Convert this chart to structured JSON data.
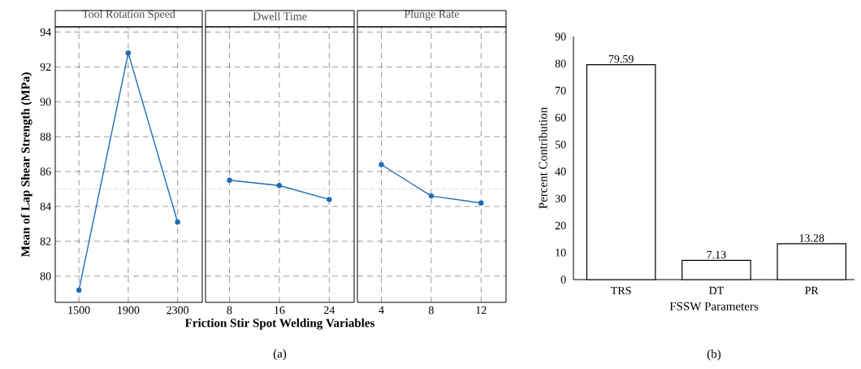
{
  "chart_data": [
    {
      "type": "line",
      "title": "Tool Rotation Speed",
      "ylabel": "Mean of Lap Shear Strength (MPa)",
      "categories": [
        "1500",
        "1900",
        "2300"
      ],
      "series": [
        {
          "color": "#1f6cb4",
          "values": [
            79.2,
            92.8,
            83.1
          ]
        }
      ],
      "ylim": [
        78.5,
        94.3
      ],
      "yticks": [
        80,
        82,
        84,
        86,
        88,
        90,
        92,
        94
      ],
      "grid": true,
      "marker": "circle",
      "line_style": "solid",
      "ref_lines": [
        {
          "axis": "y",
          "value": 85.0,
          "color": "#c8c8c8",
          "line_style": "dashed"
        }
      ]
    },
    {
      "type": "line",
      "title": "Dwell Time",
      "xlabel": "Friction Stir Spot Welding Variables",
      "categories": [
        "8",
        "16",
        "24"
      ],
      "series": [
        {
          "color": "#1f6cb4",
          "values": [
            85.5,
            85.2,
            84.4
          ]
        }
      ],
      "ylim": [
        78.5,
        94.3
      ],
      "yticks": [
        80,
        82,
        84,
        86,
        88,
        90,
        92,
        94
      ],
      "grid": true,
      "marker": "circle",
      "line_style": "solid",
      "tick_labels": "x",
      "ref_lines": [
        {
          "axis": "y",
          "value": 85.0,
          "color": "#c8c8c8",
          "line_style": "dashed"
        }
      ],
      "annotations": [
        "(a)"
      ]
    },
    {
      "type": "line",
      "title": "Plunge Rate",
      "categories": [
        "4",
        "8",
        "12"
      ],
      "series": [
        {
          "color": "#1f6cb4",
          "values": [
            86.4,
            84.6,
            84.2
          ]
        }
      ],
      "ylim": [
        78.5,
        94.3
      ],
      "yticks": [
        80,
        82,
        84,
        86,
        88,
        90,
        92,
        94
      ],
      "grid": true,
      "marker": "circle",
      "line_style": "solid",
      "tick_labels": "x",
      "ref_lines": [
        {
          "axis": "y",
          "value": 85.0,
          "color": "#c8c8c8",
          "line_style": "dashed"
        }
      ]
    },
    {
      "type": "bar",
      "xlabel": "FSSW Parameters",
      "ylabel": "Percent Contribution",
      "categories": [
        "TRS",
        "DT",
        "PR"
      ],
      "values": [
        79.59,
        7.13,
        13.28
      ],
      "color": "#ffffff",
      "data_labels": true,
      "ylim": [
        0,
        90
      ],
      "yticks": [
        0,
        10,
        20,
        30,
        40,
        50,
        60,
        70,
        80,
        90
      ],
      "annotations": [
        "(b)"
      ]
    }
  ]
}
